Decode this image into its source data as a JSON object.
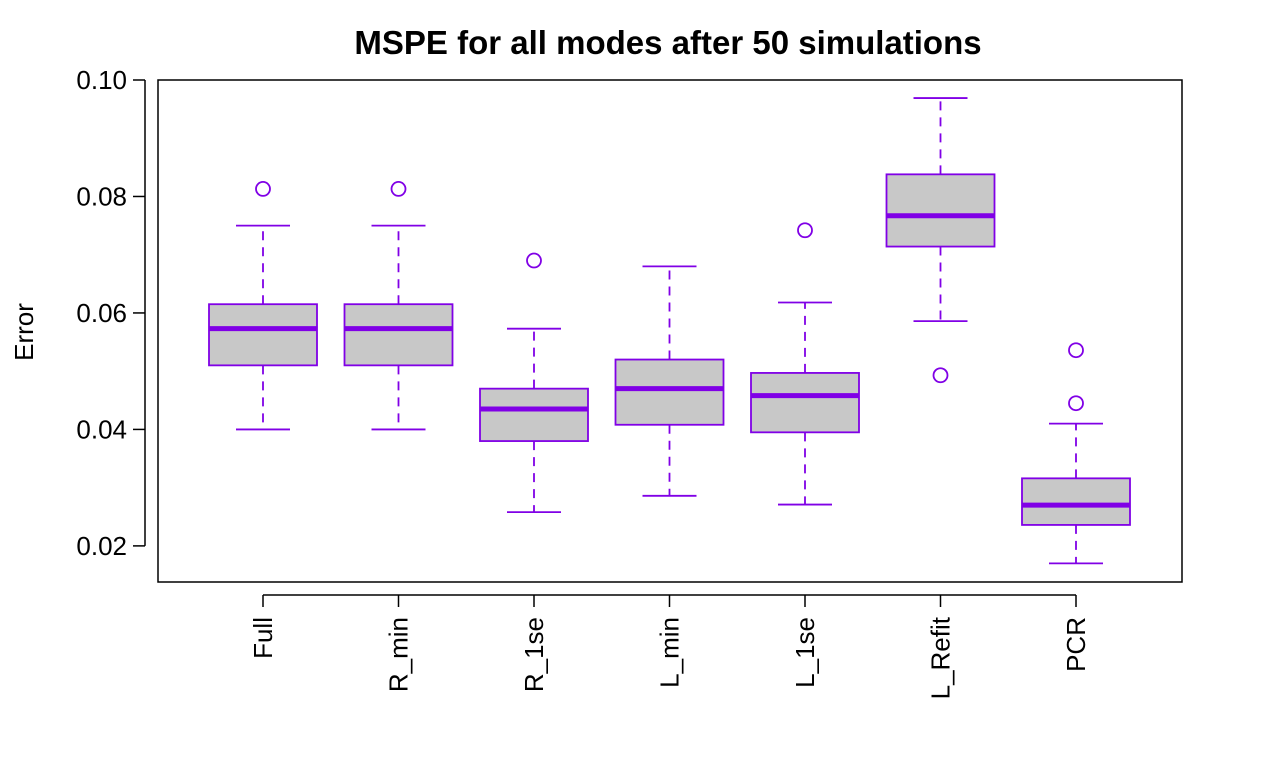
{
  "chart_data": {
    "type": "boxplot",
    "title": "MSPE for all modes after 50 simulations",
    "xlabel": "",
    "ylabel": "Error",
    "ylim": [
      0.0138,
      0.1
    ],
    "yticks": [
      "0.02",
      "0.04",
      "0.06",
      "0.08",
      "0.10"
    ],
    "grid": false,
    "legend": "none",
    "box_fill": "#c8c8c8",
    "box_color": "#8000e6",
    "categories": [
      "Full",
      "R_min",
      "R_1se",
      "L_min",
      "L_1se",
      "L_Refit",
      "PCR"
    ],
    "boxes": [
      {
        "whisker_low": 0.04,
        "q1": 0.051,
        "median": 0.0573,
        "q3": 0.0615,
        "whisker_high": 0.075,
        "outliers": [
          0.0813
        ]
      },
      {
        "whisker_low": 0.04,
        "q1": 0.051,
        "median": 0.0573,
        "q3": 0.0615,
        "whisker_high": 0.075,
        "outliers": [
          0.0813
        ]
      },
      {
        "whisker_low": 0.0258,
        "q1": 0.038,
        "median": 0.0435,
        "q3": 0.047,
        "whisker_high": 0.0573,
        "outliers": [
          0.069
        ]
      },
      {
        "whisker_low": 0.0286,
        "q1": 0.0408,
        "median": 0.047,
        "q3": 0.052,
        "whisker_high": 0.068,
        "outliers": []
      },
      {
        "whisker_low": 0.0271,
        "q1": 0.0395,
        "median": 0.0458,
        "q3": 0.0497,
        "whisker_high": 0.0618,
        "outliers": [
          0.0742
        ]
      },
      {
        "whisker_low": 0.0586,
        "q1": 0.0714,
        "median": 0.0767,
        "q3": 0.0838,
        "whisker_high": 0.0969,
        "outliers": [
          0.0493
        ]
      },
      {
        "whisker_low": 0.017,
        "q1": 0.0236,
        "median": 0.027,
        "q3": 0.0316,
        "whisker_high": 0.041,
        "outliers": [
          0.0445,
          0.0536
        ]
      }
    ]
  }
}
